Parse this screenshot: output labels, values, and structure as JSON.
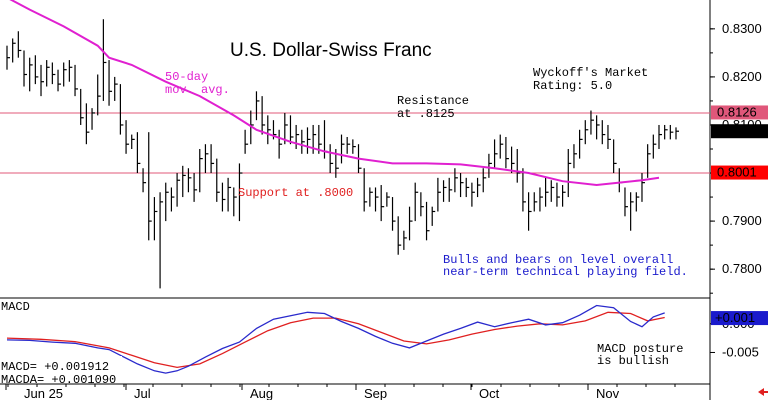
{
  "chart_data": {
    "type": "line",
    "title": "U.S. Dollar-Swiss Franc",
    "rating_text": [
      "Wyckoff's Market",
      "Rating: 5.0"
    ],
    "x_axis": {
      "tick_labels": [
        "Jun 25",
        "Jul",
        "Aug",
        "Sep",
        "Oct",
        "Nov"
      ]
    },
    "price_panel": {
      "ylim": [
        0.774,
        0.836
      ],
      "y_ticks": [
        {
          "value": 0.83,
          "label": "0.8300"
        },
        {
          "value": 0.82,
          "label": "0.8200"
        },
        {
          "value": 0.81,
          "label": "0.8100"
        },
        {
          "value": 0.8,
          "label": "0.8000"
        },
        {
          "value": 0.79,
          "label": "0.7900"
        },
        {
          "value": 0.78,
          "label": "0.7800"
        }
      ],
      "resistance": {
        "value": 0.8125,
        "label": [
          "Resistance",
          "at .8125"
        ],
        "color": "#e05a7a"
      },
      "support": {
        "value": 0.8,
        "label": "Support at .8000",
        "color": "#e05a7a"
      },
      "badges": [
        {
          "label": "0.8126",
          "value": 0.8126,
          "bg": "#e0577a"
        },
        {
          "label": "0.8087",
          "value": 0.8087,
          "bg": "#000000"
        },
        {
          "label": "0.8001",
          "value": 0.8001,
          "bg": "#ff0000"
        }
      ],
      "ma_label": [
        "50-day",
        "mov. avg."
      ],
      "ma_color": "#e020d0",
      "annotation": [
        "Bulls and bears on level overall",
        "near-term technical playing field."
      ],
      "annotation_color": "#1a1acc",
      "bars": [
        [
          0.8265,
          0.8215,
          0.824
        ],
        [
          0.828,
          0.823,
          0.827
        ],
        [
          0.8295,
          0.824,
          0.8255
        ],
        [
          0.8255,
          0.818,
          0.8205
        ],
        [
          0.824,
          0.817,
          0.8225
        ],
        [
          0.8245,
          0.8185,
          0.82
        ],
        [
          0.8225,
          0.816,
          0.819
        ],
        [
          0.8235,
          0.818,
          0.822
        ],
        [
          0.823,
          0.8185,
          0.8205
        ],
        [
          0.8215,
          0.817,
          0.8185
        ],
        [
          0.823,
          0.818,
          0.8215
        ],
        [
          0.8235,
          0.819,
          0.822
        ],
        [
          0.8225,
          0.816,
          0.8175
        ],
        [
          0.8175,
          0.81,
          0.8115
        ],
        [
          0.8145,
          0.806,
          0.8085
        ],
        [
          0.8135,
          0.809,
          0.8125
        ],
        [
          0.8205,
          0.812,
          0.816
        ],
        [
          0.832,
          0.815,
          0.823
        ],
        [
          0.8235,
          0.814,
          0.817
        ],
        [
          0.82,
          0.815,
          0.8185
        ],
        [
          0.8185,
          0.808,
          0.81
        ],
        [
          0.811,
          0.804,
          0.806
        ],
        [
          0.808,
          0.805,
          0.807
        ],
        [
          0.8085,
          0.8,
          0.802
        ],
        [
          0.801,
          0.796,
          0.798
        ],
        [
          0.8085,
          0.786,
          0.79
        ],
        [
          0.795,
          0.786,
          0.792
        ],
        [
          0.796,
          0.776,
          0.794
        ],
        [
          0.798,
          0.79,
          0.796
        ],
        [
          0.797,
          0.792,
          0.795
        ],
        [
          0.8,
          0.793,
          0.7985
        ],
        [
          0.8015,
          0.795,
          0.7995
        ],
        [
          0.801,
          0.796,
          0.799
        ],
        [
          0.8,
          0.794,
          0.7965
        ],
        [
          0.805,
          0.796,
          0.803
        ],
        [
          0.806,
          0.8,
          0.804
        ],
        [
          0.806,
          0.8,
          0.802
        ],
        [
          0.803,
          0.794,
          0.796
        ],
        [
          0.798,
          0.792,
          0.7945
        ],
        [
          0.799,
          0.792,
          0.797
        ],
        [
          0.797,
          0.791,
          0.795
        ],
        [
          0.802,
          0.79,
          0.8
        ],
        [
          0.809,
          0.804,
          0.806
        ],
        [
          0.813,
          0.806,
          0.81
        ],
        [
          0.817,
          0.811,
          0.815
        ],
        [
          0.816,
          0.808,
          0.81
        ],
        [
          0.812,
          0.806,
          0.809
        ],
        [
          0.811,
          0.807,
          0.808
        ],
        [
          0.809,
          0.803,
          0.806
        ],
        [
          0.8125,
          0.806,
          0.81
        ],
        [
          0.812,
          0.806,
          0.8075
        ],
        [
          0.81,
          0.805,
          0.808
        ],
        [
          0.809,
          0.804,
          0.8065
        ],
        [
          0.8095,
          0.804,
          0.807
        ],
        [
          0.81,
          0.804,
          0.808
        ],
        [
          0.81,
          0.804,
          0.806
        ],
        [
          0.811,
          0.803,
          0.8045
        ],
        [
          0.806,
          0.8,
          0.802
        ],
        [
          0.805,
          0.799,
          0.801
        ],
        [
          0.808,
          0.802,
          0.806
        ],
        [
          0.8075,
          0.804,
          0.806
        ],
        [
          0.807,
          0.804,
          0.8055
        ],
        [
          0.806,
          0.8,
          0.801
        ],
        [
          0.801,
          0.792,
          0.794
        ],
        [
          0.797,
          0.793,
          0.796
        ],
        [
          0.797,
          0.792,
          0.795
        ],
        [
          0.7975,
          0.79,
          0.793
        ],
        [
          0.796,
          0.793,
          0.795
        ],
        [
          0.795,
          0.788,
          0.79
        ],
        [
          0.791,
          0.783,
          0.785
        ],
        [
          0.788,
          0.784,
          0.7865
        ],
        [
          0.793,
          0.786,
          0.79
        ],
        [
          0.798,
          0.79,
          0.796
        ],
        [
          0.796,
          0.791,
          0.793
        ],
        [
          0.794,
          0.786,
          0.788
        ],
        [
          0.793,
          0.789,
          0.792
        ],
        [
          0.799,
          0.792,
          0.796
        ],
        [
          0.7985,
          0.794,
          0.797
        ],
        [
          0.799,
          0.794,
          0.7965
        ],
        [
          0.801,
          0.796,
          0.799
        ],
        [
          0.8,
          0.795,
          0.798
        ],
        [
          0.799,
          0.795,
          0.797
        ],
        [
          0.798,
          0.793,
          0.796
        ],
        [
          0.799,
          0.795,
          0.7975
        ],
        [
          0.801,
          0.796,
          0.799
        ],
        [
          0.804,
          0.799,
          0.802
        ],
        [
          0.807,
          0.801,
          0.804
        ],
        [
          0.808,
          0.803,
          0.806
        ],
        [
          0.8075,
          0.801,
          0.803
        ],
        [
          0.8055,
          0.8,
          0.802
        ],
        [
          0.805,
          0.798,
          0.8
        ],
        [
          0.801,
          0.792,
          0.794
        ],
        [
          0.796,
          0.788,
          0.792
        ],
        [
          0.796,
          0.792,
          0.794
        ],
        [
          0.797,
          0.792,
          0.795
        ],
        [
          0.799,
          0.793,
          0.796
        ],
        [
          0.7985,
          0.794,
          0.797
        ],
        [
          0.798,
          0.793,
          0.795
        ],
        [
          0.7975,
          0.793,
          0.796
        ],
        [
          0.805,
          0.795,
          0.802
        ],
        [
          0.806,
          0.801,
          0.804
        ],
        [
          0.809,
          0.803,
          0.807
        ],
        [
          0.811,
          0.806,
          0.809
        ],
        [
          0.813,
          0.808,
          0.811
        ],
        [
          0.812,
          0.807,
          0.81
        ],
        [
          0.811,
          0.806,
          0.808
        ],
        [
          0.81,
          0.805,
          0.807
        ],
        [
          0.807,
          0.8,
          0.802
        ],
        [
          0.801,
          0.796,
          0.798
        ],
        [
          0.797,
          0.791,
          0.793
        ],
        [
          0.796,
          0.788,
          0.794
        ],
        [
          0.796,
          0.792,
          0.795
        ],
        [
          0.8,
          0.794,
          0.798
        ],
        [
          0.806,
          0.799,
          0.804
        ],
        [
          0.808,
          0.803,
          0.806
        ],
        [
          0.81,
          0.805,
          0.808
        ],
        [
          0.81,
          0.807,
          0.809
        ],
        [
          0.81,
          0.807,
          0.8085
        ],
        [
          0.8095,
          0.807,
          0.8087
        ]
      ],
      "moving_average": [
        [
          0,
          0.8365
        ],
        [
          4,
          0.834
        ],
        [
          10,
          0.8305
        ],
        [
          16,
          0.8265
        ],
        [
          18,
          0.824
        ],
        [
          22,
          0.8225
        ],
        [
          28,
          0.819
        ],
        [
          34,
          0.816
        ],
        [
          40,
          0.812
        ],
        [
          44,
          0.809
        ],
        [
          50,
          0.8065
        ],
        [
          56,
          0.8045
        ],
        [
          62,
          0.803
        ],
        [
          68,
          0.802
        ],
        [
          74,
          0.802
        ],
        [
          80,
          0.8018
        ],
        [
          86,
          0.801
        ],
        [
          92,
          0.8
        ],
        [
          98,
          0.7983
        ],
        [
          104,
          0.7975
        ],
        [
          108,
          0.798
        ],
        [
          112,
          0.7985
        ],
        [
          115,
          0.799
        ]
      ]
    },
    "macd_panel": {
      "title": "MACD",
      "ylim": [
        -0.0105,
        0.0045
      ],
      "y_ticks": [
        {
          "value": 0.0,
          "label": "0.000"
        },
        {
          "value": -0.005,
          "label": "-0.005"
        }
      ],
      "badge": {
        "label": "+0.001",
        "value": 0.001,
        "bg": "#1a1acc"
      },
      "readout": {
        "macd": "MACD=   +0.001912",
        "macda": "MACDA=  +0.001090"
      },
      "macd_color": "#2a2acc",
      "signal_color": "#e02020",
      "note": [
        "MACD posture",
        "is bullish"
      ],
      "macd": [
        [
          0,
          -0.0028
        ],
        [
          4,
          -0.0029
        ],
        [
          8,
          -0.0032
        ],
        [
          12,
          -0.0034
        ],
        [
          16,
          -0.0042
        ],
        [
          18,
          -0.0045
        ],
        [
          20,
          -0.0055
        ],
        [
          23,
          -0.007
        ],
        [
          26,
          -0.0082
        ],
        [
          28,
          -0.0086
        ],
        [
          30,
          -0.0082
        ],
        [
          32,
          -0.0074
        ],
        [
          35,
          -0.0058
        ],
        [
          38,
          -0.0043
        ],
        [
          41,
          -0.0032
        ],
        [
          44,
          -0.0008
        ],
        [
          47,
          0.0008
        ],
        [
          50,
          0.0014
        ],
        [
          53,
          0.002
        ],
        [
          56,
          0.0018
        ],
        [
          59,
          0.0004
        ],
        [
          62,
          -0.0008
        ],
        [
          65,
          -0.0022
        ],
        [
          68,
          -0.0034
        ],
        [
          71,
          -0.0042
        ],
        [
          74,
          -0.003
        ],
        [
          77,
          -0.0018
        ],
        [
          80,
          -0.0008
        ],
        [
          83,
          0.0003
        ],
        [
          86,
          -0.0005
        ],
        [
          89,
          0.0002
        ],
        [
          92,
          0.0008
        ],
        [
          95,
          -0.0002
        ],
        [
          98,
          0.0002
        ],
        [
          101,
          0.0015
        ],
        [
          104,
          0.0032
        ],
        [
          107,
          0.0028
        ],
        [
          110,
          0.0004
        ],
        [
          112,
          -0.0005
        ],
        [
          114,
          0.0012
        ],
        [
          116,
          0.0019
        ]
      ],
      "signal": [
        [
          0,
          -0.0025
        ],
        [
          6,
          -0.0027
        ],
        [
          12,
          -0.0031
        ],
        [
          18,
          -0.0042
        ],
        [
          22,
          -0.0055
        ],
        [
          26,
          -0.0068
        ],
        [
          30,
          -0.0076
        ],
        [
          34,
          -0.007
        ],
        [
          38,
          -0.0052
        ],
        [
          42,
          -0.0032
        ],
        [
          46,
          -0.0012
        ],
        [
          50,
          0.0002
        ],
        [
          54,
          0.001
        ],
        [
          58,
          0.001
        ],
        [
          62,
          0.0
        ],
        [
          66,
          -0.0015
        ],
        [
          70,
          -0.003
        ],
        [
          74,
          -0.0035
        ],
        [
          78,
          -0.0028
        ],
        [
          82,
          -0.0018
        ],
        [
          86,
          -0.001
        ],
        [
          90,
          -0.0004
        ],
        [
          94,
          0.0
        ],
        [
          98,
          -0.0002
        ],
        [
          102,
          0.0005
        ],
        [
          106,
          0.002
        ],
        [
          110,
          0.0018
        ],
        [
          113,
          0.0005
        ],
        [
          116,
          0.0011
        ]
      ]
    }
  }
}
